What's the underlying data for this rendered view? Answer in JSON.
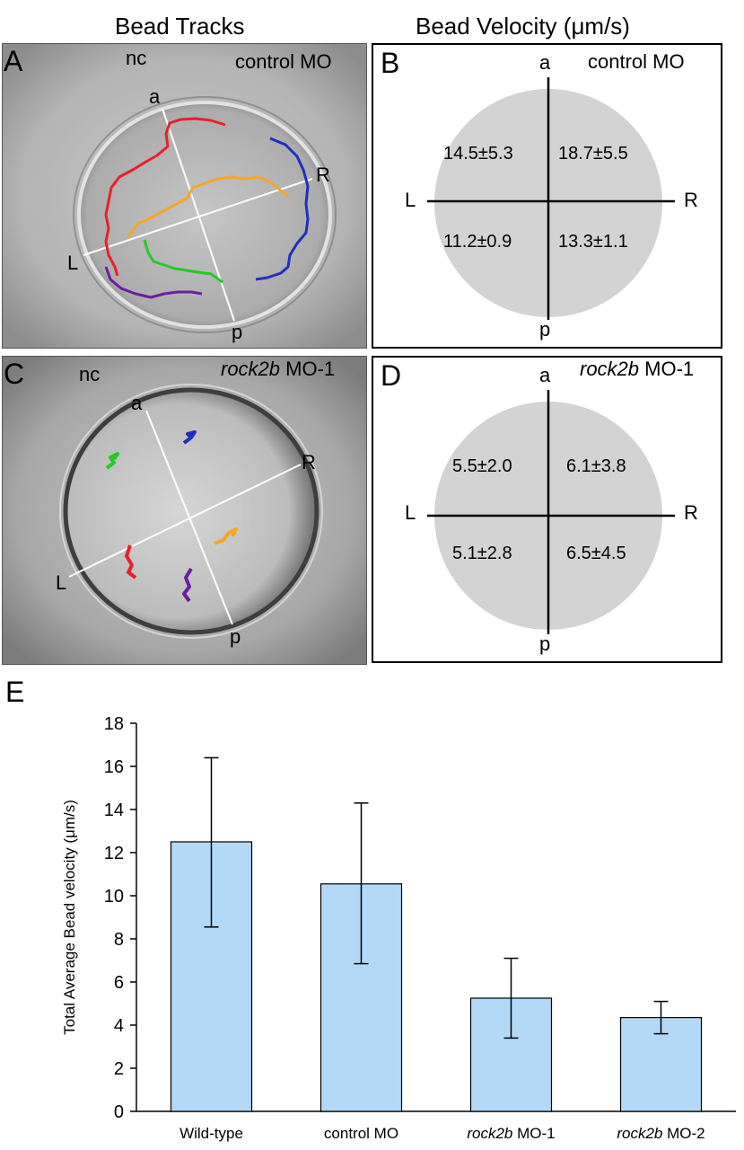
{
  "headers": {
    "left": "Bead Tracks",
    "right_prefix": "Bead Velocity (",
    "right_mu": "μ",
    "right_suffix": "m/s)"
  },
  "panels": {
    "A": {
      "letter": "A",
      "nc": "nc",
      "condition": "control MO",
      "axis": {
        "a": "a",
        "p": "p",
        "L": "L",
        "R": "R"
      },
      "track_colors": [
        "#e8202a",
        "#f5a623",
        "#1f2fbf",
        "#22cc22",
        "#6a1fa0"
      ]
    },
    "B": {
      "letter": "B",
      "condition": "control MO",
      "axis": {
        "a": "a",
        "p": "p",
        "L": "L",
        "R": "R"
      },
      "quadrants": {
        "al": "14.5±5.3",
        "ar": "18.7±5.5",
        "pl": "11.2±0.9",
        "pr": "13.3±1.1"
      }
    },
    "C": {
      "letter": "C",
      "nc": "nc",
      "condition_italic": "rock2b",
      "condition_rest": " MO-1",
      "axis": {
        "a": "a",
        "p": "p",
        "L": "L",
        "R": "R"
      },
      "track_colors": [
        "#22cc22",
        "#1f2fbf",
        "#e8202a",
        "#f5a623",
        "#6a1fa0"
      ]
    },
    "D": {
      "letter": "D",
      "condition_italic": "rock2b",
      "condition_rest": " MO-1",
      "axis": {
        "a": "a",
        "p": "p",
        "L": "L",
        "R": "R"
      },
      "quadrants": {
        "al": "5.5±2.0",
        "ar": "6.1±3.8",
        "pl": "5.1±2.8",
        "pr": "6.5±4.5"
      }
    },
    "E": {
      "letter": "E"
    }
  },
  "colors": {
    "bar_fill": "#b3d9f7",
    "bar_stroke": "#000000",
    "disc": "#d3d3d3"
  },
  "chart_data": {
    "type": "bar",
    "categories": [
      "Wild-type",
      "control MO",
      "rock2b MO-1",
      "rock2b MO-2"
    ],
    "category_italic": [
      "",
      "",
      "rock2b",
      "rock2b"
    ],
    "category_rest": [
      "Wild-type",
      "control MO",
      " MO-1",
      " MO-2"
    ],
    "values": [
      12.5,
      10.55,
      5.25,
      4.35
    ],
    "error_low": [
      8.55,
      6.85,
      3.4,
      3.6
    ],
    "error_high": [
      16.4,
      14.3,
      7.1,
      5.1
    ],
    "ylabel": "Total Average Bead velocity (μm/s)",
    "ylim": [
      0,
      18
    ],
    "yticks": [
      0,
      2,
      4,
      6,
      8,
      10,
      12,
      14,
      16,
      18
    ],
    "grid": false
  }
}
